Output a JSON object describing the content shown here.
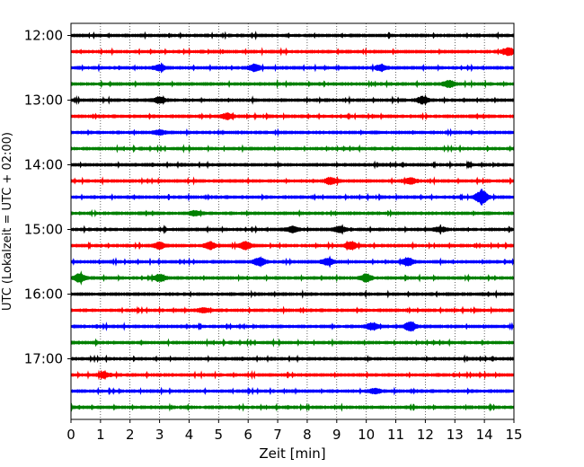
{
  "chart_data": {
    "type": "line",
    "title": "",
    "xlabel": "Zeit  [min]",
    "ylabel": "UTC (Lokalzeit = UTC + 02:00)",
    "xlim": [
      0,
      15
    ],
    "x_ticks": [
      "0",
      "1",
      "2",
      "3",
      "4",
      "5",
      "6",
      "7",
      "8",
      "9",
      "10",
      "11",
      "12",
      "13",
      "14",
      "15"
    ],
    "y_ticks": [
      "12:00",
      "13:00",
      "14:00",
      "15:00",
      "16:00",
      "17:00"
    ],
    "grid": "vertical dotted at each minute",
    "trace_interval_minutes": 15,
    "trace_colors": [
      "#000000",
      "#ff0000",
      "#0000ff",
      "#008000"
    ],
    "series": [
      {
        "start": "12:00",
        "color": "#000000",
        "events": []
      },
      {
        "start": "12:15",
        "color": "#ff0000",
        "events": [
          {
            "t": 14.8,
            "amp": 0.35
          }
        ]
      },
      {
        "start": "12:30",
        "color": "#0000ff",
        "events": [
          {
            "t": 3,
            "amp": 0.25
          },
          {
            "t": 6.2,
            "amp": 0.3
          },
          {
            "t": 10.5,
            "amp": 0.25
          }
        ]
      },
      {
        "start": "12:45",
        "color": "#008000",
        "events": [
          {
            "t": 12.8,
            "amp": 0.3
          }
        ]
      },
      {
        "start": "13:00",
        "color": "#000000",
        "events": [
          {
            "t": 3,
            "amp": 0.25
          },
          {
            "t": 11.9,
            "amp": 0.3
          }
        ]
      },
      {
        "start": "13:15",
        "color": "#ff0000",
        "events": [
          {
            "t": 5.3,
            "amp": 0.25
          }
        ]
      },
      {
        "start": "13:30",
        "color": "#0000ff",
        "events": [
          {
            "t": 3,
            "amp": 0.2
          }
        ]
      },
      {
        "start": "13:45",
        "color": "#008000",
        "events": []
      },
      {
        "start": "14:00",
        "color": "#000000",
        "events": []
      },
      {
        "start": "14:15",
        "color": "#ff0000",
        "events": [
          {
            "t": 8.8,
            "amp": 0.3
          },
          {
            "t": 11.5,
            "amp": 0.25
          }
        ]
      },
      {
        "start": "14:30",
        "color": "#0000ff",
        "events": [
          {
            "t": 13.9,
            "amp": 0.7
          }
        ]
      },
      {
        "start": "14:45",
        "color": "#008000",
        "events": [
          {
            "t": 4.2,
            "amp": 0.2
          }
        ]
      },
      {
        "start": "15:00",
        "color": "#000000",
        "events": [
          {
            "t": 7.5,
            "amp": 0.25
          },
          {
            "t": 9.1,
            "amp": 0.25
          },
          {
            "t": 12.5,
            "amp": 0.2
          }
        ]
      },
      {
        "start": "15:15",
        "color": "#ff0000",
        "events": [
          {
            "t": 3.0,
            "amp": 0.3
          },
          {
            "t": 4.7,
            "amp": 0.3
          },
          {
            "t": 5.9,
            "amp": 0.35
          },
          {
            "t": 9.5,
            "amp": 0.35
          }
        ]
      },
      {
        "start": "15:30",
        "color": "#0000ff",
        "events": [
          {
            "t": 6.4,
            "amp": 0.4
          },
          {
            "t": 8.7,
            "amp": 0.3
          },
          {
            "t": 11.4,
            "amp": 0.35
          }
        ]
      },
      {
        "start": "15:45",
        "color": "#008000",
        "events": [
          {
            "t": 0.3,
            "amp": 0.35
          },
          {
            "t": 3.0,
            "amp": 0.3
          },
          {
            "t": 10.0,
            "amp": 0.35
          }
        ]
      },
      {
        "start": "16:00",
        "color": "#000000",
        "events": []
      },
      {
        "start": "16:15",
        "color": "#ff0000",
        "events": [
          {
            "t": 4.5,
            "amp": 0.2
          }
        ]
      },
      {
        "start": "16:30",
        "color": "#0000ff",
        "events": [
          {
            "t": 10.2,
            "amp": 0.3
          },
          {
            "t": 11.5,
            "amp": 0.45
          }
        ]
      },
      {
        "start": "16:45",
        "color": "#008000",
        "events": []
      },
      {
        "start": "17:00",
        "color": "#000000",
        "events": []
      },
      {
        "start": "17:15",
        "color": "#ff0000",
        "events": [
          {
            "t": 1.1,
            "amp": 0.25
          }
        ]
      },
      {
        "start": "17:30",
        "color": "#0000ff",
        "events": [
          {
            "t": 10.3,
            "amp": 0.2
          }
        ]
      },
      {
        "start": "17:45",
        "color": "#008000",
        "events": []
      }
    ]
  }
}
